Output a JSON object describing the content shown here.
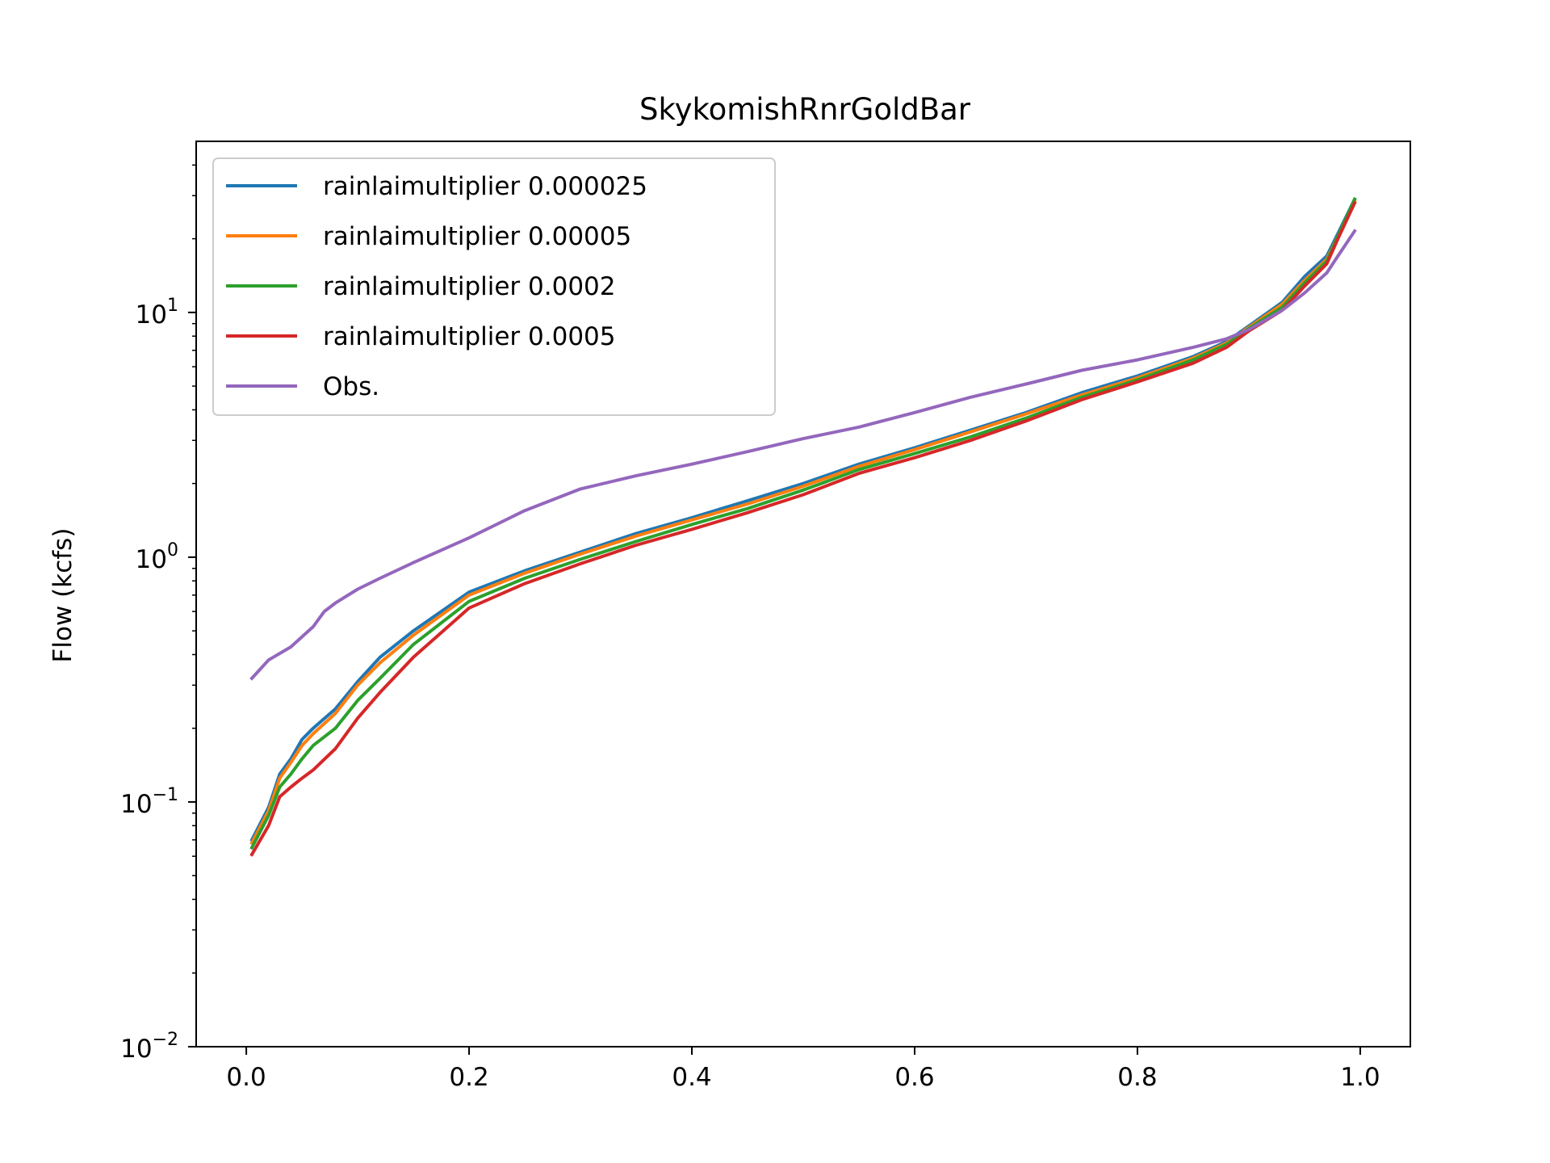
{
  "chart_data": {
    "type": "line",
    "title": "SkykomishRnrGoldBar",
    "xlabel": "",
    "ylabel": "Flow (kcfs)",
    "yscale": "log",
    "xlim": [
      -0.045,
      1.045
    ],
    "ylim": [
      0.01,
      50
    ],
    "x_ticks": [
      {
        "value": 0.0,
        "label": "0.0"
      },
      {
        "value": 0.2,
        "label": "0.2"
      },
      {
        "value": 0.4,
        "label": "0.4"
      },
      {
        "value": 0.6,
        "label": "0.6"
      },
      {
        "value": 0.8,
        "label": "0.8"
      },
      {
        "value": 1.0,
        "label": "1.0"
      }
    ],
    "y_ticks": [
      {
        "value": 0.01,
        "base": "10",
        "exp": "−2"
      },
      {
        "value": 0.1,
        "base": "10",
        "exp": "−1"
      },
      {
        "value": 1,
        "base": "10",
        "exp": "0"
      },
      {
        "value": 10,
        "base": "10",
        "exp": "1"
      }
    ],
    "grid": false,
    "legend_position": "upper-left",
    "series": [
      {
        "name": "rainlaimultiplier 0.000025",
        "color": "#1f77b4",
        "x": [
          0.005,
          0.02,
          0.03,
          0.04,
          0.05,
          0.06,
          0.08,
          0.1,
          0.12,
          0.15,
          0.2,
          0.25,
          0.3,
          0.35,
          0.4,
          0.45,
          0.5,
          0.55,
          0.6,
          0.65,
          0.7,
          0.75,
          0.8,
          0.85,
          0.88,
          0.9,
          0.93,
          0.95,
          0.97,
          0.98,
          0.995
        ],
        "y": [
          0.07,
          0.095,
          0.13,
          0.15,
          0.18,
          0.2,
          0.24,
          0.31,
          0.39,
          0.5,
          0.72,
          0.88,
          1.05,
          1.25,
          1.45,
          1.7,
          2.0,
          2.4,
          2.8,
          3.3,
          3.9,
          4.7,
          5.5,
          6.6,
          7.6,
          8.8,
          11.0,
          14.0,
          17.0,
          21.0,
          29.0
        ]
      },
      {
        "name": "rainlaimultiplier 0.00005",
        "color": "#ff7f0e",
        "x": [
          0.005,
          0.02,
          0.03,
          0.04,
          0.05,
          0.06,
          0.08,
          0.1,
          0.12,
          0.15,
          0.2,
          0.25,
          0.3,
          0.35,
          0.4,
          0.45,
          0.5,
          0.55,
          0.6,
          0.65,
          0.7,
          0.75,
          0.8,
          0.85,
          0.88,
          0.9,
          0.93,
          0.95,
          0.97,
          0.98,
          0.995
        ],
        "y": [
          0.068,
          0.092,
          0.125,
          0.145,
          0.17,
          0.19,
          0.23,
          0.3,
          0.37,
          0.48,
          0.7,
          0.86,
          1.03,
          1.22,
          1.42,
          1.65,
          1.95,
          2.35,
          2.75,
          3.25,
          3.85,
          4.6,
          5.4,
          6.5,
          7.5,
          8.7,
          10.8,
          13.5,
          16.5,
          20.5,
          28.5
        ]
      },
      {
        "name": "rainlaimultiplier 0.0002",
        "color": "#2ca02c",
        "x": [
          0.005,
          0.02,
          0.03,
          0.04,
          0.05,
          0.06,
          0.08,
          0.1,
          0.12,
          0.15,
          0.2,
          0.25,
          0.3,
          0.35,
          0.4,
          0.45,
          0.5,
          0.55,
          0.6,
          0.65,
          0.7,
          0.75,
          0.8,
          0.85,
          0.88,
          0.9,
          0.93,
          0.95,
          0.97,
          0.98,
          0.995
        ],
        "y": [
          0.065,
          0.088,
          0.115,
          0.13,
          0.15,
          0.17,
          0.2,
          0.26,
          0.32,
          0.44,
          0.66,
          0.82,
          0.98,
          1.16,
          1.36,
          1.58,
          1.88,
          2.28,
          2.65,
          3.1,
          3.7,
          4.5,
          5.3,
          6.4,
          7.4,
          8.6,
          10.5,
          13.2,
          16.2,
          20.5,
          29.0
        ]
      },
      {
        "name": "rainlaimultiplier 0.0005",
        "color": "#d62728",
        "x": [
          0.005,
          0.02,
          0.03,
          0.04,
          0.05,
          0.06,
          0.08,
          0.1,
          0.12,
          0.15,
          0.2,
          0.25,
          0.3,
          0.35,
          0.4,
          0.45,
          0.5,
          0.55,
          0.6,
          0.65,
          0.7,
          0.75,
          0.8,
          0.85,
          0.88,
          0.9,
          0.93,
          0.95,
          0.97,
          0.98,
          0.995
        ],
        "y": [
          0.061,
          0.08,
          0.105,
          0.115,
          0.125,
          0.135,
          0.165,
          0.22,
          0.28,
          0.39,
          0.62,
          0.78,
          0.94,
          1.12,
          1.3,
          1.52,
          1.8,
          2.2,
          2.55,
          3.0,
          3.6,
          4.4,
          5.2,
          6.2,
          7.2,
          8.4,
          10.2,
          12.8,
          15.8,
          20.0,
          28.0
        ]
      },
      {
        "name": "Obs.",
        "color": "#9467bd",
        "x": [
          0.005,
          0.02,
          0.04,
          0.06,
          0.07,
          0.08,
          0.1,
          0.12,
          0.15,
          0.2,
          0.25,
          0.3,
          0.35,
          0.4,
          0.45,
          0.5,
          0.55,
          0.6,
          0.65,
          0.7,
          0.75,
          0.8,
          0.85,
          0.88,
          0.9,
          0.93,
          0.95,
          0.97,
          0.98,
          0.995
        ],
        "y": [
          0.32,
          0.38,
          0.43,
          0.52,
          0.6,
          0.65,
          0.74,
          0.82,
          0.95,
          1.2,
          1.55,
          1.9,
          2.15,
          2.4,
          2.7,
          3.05,
          3.4,
          3.9,
          4.5,
          5.1,
          5.8,
          6.4,
          7.2,
          7.8,
          8.5,
          10.2,
          12.0,
          14.5,
          17.0,
          21.5
        ]
      }
    ]
  }
}
